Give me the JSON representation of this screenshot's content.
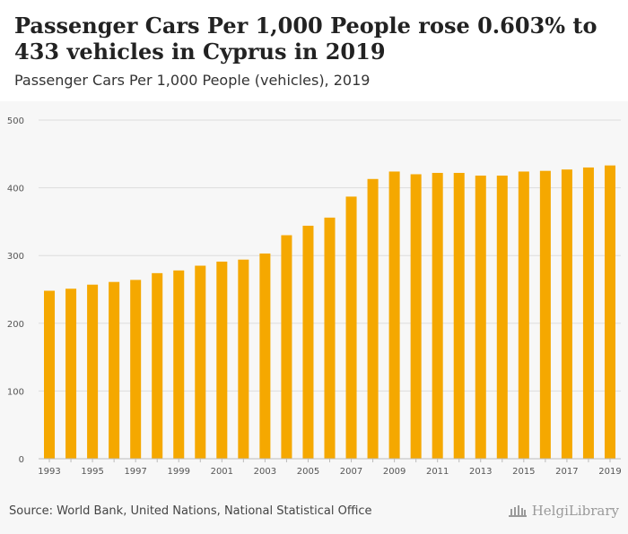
{
  "title": "Passenger Cars Per 1,000 People rose 0.603% to 433 vehicles in Cyprus in 2019",
  "subtitle": "Passenger Cars Per 1,000 People (vehicles), 2019",
  "source": "Source: World Bank, United Nations, National Statistical Office",
  "brand": "HelgiLibrary",
  "brand_icon": "library-building-icon",
  "colors": {
    "bar": "#f5a800",
    "grid": "#dddddd",
    "axis_text": "#555555"
  },
  "chart_data": {
    "type": "bar",
    "title": "Passenger Cars Per 1,000 People (vehicles), 2019",
    "xlabel": "",
    "ylabel": "",
    "ylim": [
      0,
      500
    ],
    "yticks": [
      0,
      100,
      200,
      300,
      400,
      500
    ],
    "grid": true,
    "categories": [
      "1993",
      "1994",
      "1995",
      "1996",
      "1997",
      "1998",
      "1999",
      "2000",
      "2001",
      "2002",
      "2003",
      "2004",
      "2005",
      "2006",
      "2007",
      "2008",
      "2009",
      "2010",
      "2011",
      "2012",
      "2013",
      "2014",
      "2015",
      "2016",
      "2017",
      "2018",
      "2019"
    ],
    "xtick_labels": [
      "1993",
      "1995",
      "1997",
      "1999",
      "2001",
      "2003",
      "2005",
      "2007",
      "2009",
      "2011",
      "2013",
      "2015",
      "2017",
      "2019"
    ],
    "series": [
      {
        "name": "Passenger Cars Per 1,000 People",
        "values": [
          248,
          251,
          257,
          261,
          264,
          274,
          278,
          285,
          291,
          294,
          303,
          330,
          344,
          356,
          387,
          413,
          424,
          420,
          422,
          422,
          418,
          418,
          424,
          425,
          427,
          430,
          433
        ]
      }
    ]
  }
}
